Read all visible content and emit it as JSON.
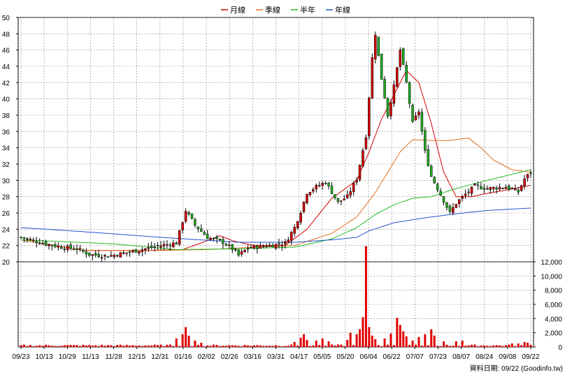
{
  "legend": [
    {
      "label": "月線",
      "color": "#d40000"
    },
    {
      "label": "季線",
      "color": "#e07020"
    },
    {
      "label": "半年",
      "color": "#22bb22"
    },
    {
      "label": "年線",
      "color": "#2255cc"
    }
  ],
  "footer": "資料日期: 09/22 (Goodinfo.tw)",
  "chart_data": {
    "type": "candlestick",
    "x_ticks": [
      "09/23",
      "10/13",
      "10/29",
      "11/13",
      "11/28",
      "12/15",
      "12/31",
      "01/16",
      "02/02",
      "02/26",
      "03/16",
      "03/31",
      "04/17",
      "05/05",
      "05/20",
      "06/04",
      "06/22",
      "07/07",
      "07/23",
      "08/07",
      "08/24",
      "09/08",
      "09/22"
    ],
    "price_axis": {
      "min": 20,
      "max": 50,
      "ticks": [
        "20",
        "22",
        "24",
        "26",
        "28",
        "30",
        "32",
        "34",
        "36",
        "38",
        "40",
        "42",
        "44",
        "46",
        "48",
        "50"
      ]
    },
    "volume_axis": {
      "min": 0,
      "max": 12000,
      "ticks": [
        "0",
        "2,000",
        "4,000",
        "6,000",
        "8,000",
        "10,000",
        "12,000"
      ]
    },
    "close_keypoints": [
      [
        0,
        23.0
      ],
      [
        8,
        22.2
      ],
      [
        13,
        21.8
      ],
      [
        18,
        21.6
      ],
      [
        22,
        20.9
      ],
      [
        28,
        20.7
      ],
      [
        35,
        21.2
      ],
      [
        45,
        22.0
      ],
      [
        50,
        22.3
      ],
      [
        53,
        26.3
      ],
      [
        56,
        24.5
      ],
      [
        60,
        23.0
      ],
      [
        65,
        22.4
      ],
      [
        68,
        21.6
      ],
      [
        70,
        20.8
      ],
      [
        73,
        21.7
      ],
      [
        80,
        22.0
      ],
      [
        85,
        22.3
      ],
      [
        88,
        24.2
      ],
      [
        90,
        26.2
      ],
      [
        92,
        28.5
      ],
      [
        95,
        29.2
      ],
      [
        98,
        29.8
      ],
      [
        102,
        27.3
      ],
      [
        105,
        28.0
      ],
      [
        108,
        30.2
      ],
      [
        111,
        35.5
      ],
      [
        113,
        45.0
      ],
      [
        114,
        48.0
      ],
      [
        116,
        42.5
      ],
      [
        118,
        38.0
      ],
      [
        120,
        41.5
      ],
      [
        122,
        46.0
      ],
      [
        124,
        42.0
      ],
      [
        126,
        37.0
      ],
      [
        128,
        38.5
      ],
      [
        130,
        33.5
      ],
      [
        132,
        30.5
      ],
      [
        134,
        29.0
      ],
      [
        136,
        27.5
      ],
      [
        138,
        26.0
      ],
      [
        140,
        27.2
      ],
      [
        143,
        28.3
      ],
      [
        146,
        29.3
      ],
      [
        150,
        29.0
      ],
      [
        156,
        29.2
      ],
      [
        160,
        28.6
      ],
      [
        162,
        30.2
      ],
      [
        164,
        31.0
      ]
    ],
    "ma_keypoints": {
      "月線": [
        [
          0,
          22.7
        ],
        [
          20,
          21.4
        ],
        [
          40,
          21.4
        ],
        [
          52,
          21.5
        ],
        [
          60,
          22.6
        ],
        [
          64,
          23.2
        ],
        [
          68,
          22.6
        ],
        [
          75,
          22.0
        ],
        [
          85,
          22.0
        ],
        [
          92,
          24.0
        ],
        [
          100,
          27.8
        ],
        [
          108,
          30.0
        ],
        [
          112,
          33.5
        ],
        [
          116,
          37.5
        ],
        [
          120,
          40.5
        ],
        [
          124,
          43.5
        ],
        [
          128,
          42.0
        ],
        [
          132,
          37.0
        ],
        [
          136,
          31.0
        ],
        [
          140,
          28.0
        ],
        [
          145,
          28.0
        ],
        [
          150,
          28.4
        ],
        [
          156,
          28.8
        ],
        [
          164,
          29.4
        ]
      ],
      "季線": [
        [
          0,
          22.7
        ],
        [
          20,
          21.4
        ],
        [
          45,
          21.4
        ],
        [
          60,
          21.5
        ],
        [
          75,
          21.8
        ],
        [
          88,
          22.0
        ],
        [
          100,
          23.5
        ],
        [
          108,
          25.5
        ],
        [
          114,
          28.5
        ],
        [
          118,
          31.0
        ],
        [
          122,
          33.5
        ],
        [
          126,
          35.0
        ],
        [
          132,
          34.9
        ],
        [
          138,
          34.9
        ],
        [
          144,
          35.2
        ],
        [
          148,
          34.0
        ],
        [
          152,
          32.5
        ],
        [
          158,
          31.3
        ],
        [
          164,
          31.0
        ]
      ],
      "半年": [
        [
          0,
          22.7
        ],
        [
          30,
          22.2
        ],
        [
          50,
          21.5
        ],
        [
          70,
          21.6
        ],
        [
          88,
          21.8
        ],
        [
          100,
          22.8
        ],
        [
          108,
          24.2
        ],
        [
          114,
          25.8
        ],
        [
          120,
          27.0
        ],
        [
          126,
          27.8
        ],
        [
          132,
          28.0
        ],
        [
          140,
          29.0
        ],
        [
          150,
          30.0
        ],
        [
          164,
          31.3
        ]
      ],
      "年線": [
        [
          0,
          24.2
        ],
        [
          20,
          23.7
        ],
        [
          45,
          23.0
        ],
        [
          70,
          22.4
        ],
        [
          88,
          22.4
        ],
        [
          100,
          22.7
        ],
        [
          108,
          23.0
        ],
        [
          112,
          23.8
        ],
        [
          120,
          24.8
        ],
        [
          130,
          25.4
        ],
        [
          140,
          25.9
        ],
        [
          150,
          26.3
        ],
        [
          164,
          26.6
        ]
      ]
    },
    "volume_spikes": [
      [
        50,
        1200
      ],
      [
        52,
        1800
      ],
      [
        53,
        2800
      ],
      [
        54,
        1600
      ],
      [
        56,
        900
      ],
      [
        58,
        600
      ],
      [
        88,
        700
      ],
      [
        90,
        1300
      ],
      [
        91,
        1800
      ],
      [
        92,
        1000
      ],
      [
        95,
        900
      ],
      [
        97,
        1200
      ],
      [
        99,
        800
      ],
      [
        105,
        1000
      ],
      [
        106,
        2000
      ],
      [
        108,
        1800
      ],
      [
        109,
        2500
      ],
      [
        110,
        4200
      ],
      [
        111,
        14200
      ],
      [
        112,
        2800
      ],
      [
        113,
        1600
      ],
      [
        114,
        1100
      ],
      [
        117,
        1200
      ],
      [
        119,
        1900
      ],
      [
        121,
        4100
      ],
      [
        122,
        3100
      ],
      [
        123,
        2200
      ],
      [
        124,
        1500
      ],
      [
        126,
        900
      ],
      [
        128,
        1400
      ],
      [
        130,
        1800
      ],
      [
        132,
        2500
      ],
      [
        133,
        1600
      ],
      [
        136,
        800
      ],
      [
        140,
        800
      ],
      [
        142,
        900
      ],
      [
        158,
        500
      ],
      [
        160,
        500
      ],
      [
        162,
        700
      ],
      [
        163,
        600
      ]
    ]
  }
}
